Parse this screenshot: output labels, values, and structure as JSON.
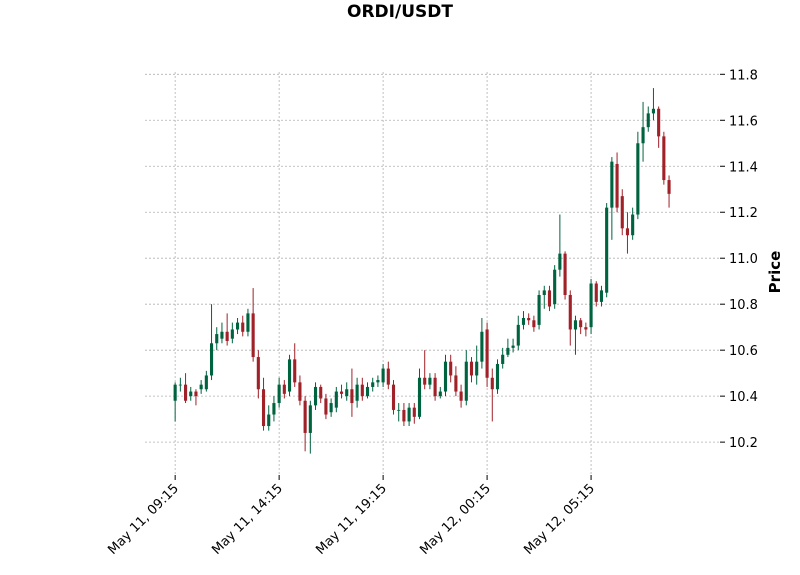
{
  "chart_data": {
    "type": "candlestick",
    "title": "ORDI/USDT",
    "ylabel": "Price",
    "up_color": "#006340",
    "down_color": "#a02128",
    "grid": true,
    "xlim": [
      -5.8,
      104.8
    ],
    "ylim": [
      10.057,
      11.81
    ],
    "xticks": [
      {
        "value": 0,
        "label": "May 11, 09:15"
      },
      {
        "value": 20,
        "label": "May 11, 14:15"
      },
      {
        "value": 40,
        "label": "May 11, 19:15"
      },
      {
        "value": 60,
        "label": "May 12, 00:15"
      },
      {
        "value": 80,
        "label": "May 12, 05:15"
      }
    ],
    "yticks": [
      10.2,
      10.4,
      10.6,
      10.8,
      11.0,
      11.2,
      11.4,
      11.6,
      11.8
    ],
    "ytick_labels": [
      "10.2",
      "10.4",
      "10.6",
      "10.8",
      "11.0",
      "11.2",
      "11.4",
      "11.6",
      "11.8"
    ],
    "open": [
      10.38,
      10.45,
      10.45,
      10.4,
      10.42,
      10.43,
      10.43,
      10.49,
      10.63,
      10.65,
      10.68,
      10.65,
      10.69,
      10.72,
      10.68,
      10.76,
      10.57,
      10.43,
      10.27,
      10.32,
      10.37,
      10.45,
      10.42,
      10.56,
      10.46,
      10.38,
      10.24,
      10.36,
      10.44,
      10.39,
      10.33,
      10.35,
      10.42,
      10.4,
      10.43,
      10.38,
      10.45,
      10.4,
      10.44,
      10.46,
      10.46,
      10.52,
      10.45,
      10.34,
      10.34,
      10.29,
      10.35,
      10.31,
      10.48,
      10.45,
      10.48,
      10.4,
      10.42,
      10.55,
      10.49,
      10.42,
      10.38,
      10.55,
      10.49,
      10.55,
      10.69,
      10.48,
      10.43,
      10.54,
      10.58,
      10.61,
      10.62,
      10.71,
      10.74,
      10.73,
      10.71,
      10.84,
      10.86,
      10.8,
      10.95,
      11.02,
      10.84,
      10.69,
      10.73,
      10.7,
      10.7,
      10.89,
      10.81,
      10.85,
      11.22,
      11.41,
      11.27,
      11.13,
      11.1,
      11.19,
      11.5,
      11.57,
      11.63,
      11.65,
      11.53,
      11.34
    ],
    "high": [
      10.46,
      10.48,
      10.5,
      10.44,
      10.43,
      10.47,
      10.51,
      10.8,
      10.7,
      10.72,
      10.76,
      10.72,
      10.74,
      10.75,
      10.78,
      10.87,
      10.6,
      10.48,
      10.36,
      10.4,
      10.48,
      10.47,
      10.58,
      10.63,
      10.49,
      10.4,
      10.38,
      10.46,
      10.45,
      10.41,
      10.39,
      10.44,
      10.45,
      10.46,
      10.52,
      10.48,
      10.48,
      10.46,
      10.48,
      10.49,
      10.54,
      10.55,
      10.47,
      10.37,
      10.37,
      10.37,
      10.37,
      10.52,
      10.6,
      10.5,
      10.5,
      10.44,
      10.58,
      10.58,
      10.53,
      10.45,
      10.6,
      10.57,
      10.62,
      10.74,
      10.72,
      10.52,
      10.56,
      10.61,
      10.65,
      10.65,
      10.75,
      10.77,
      10.76,
      10.75,
      10.86,
      10.88,
      10.88,
      10.97,
      11.19,
      11.03,
      10.86,
      10.75,
      10.74,
      10.72,
      10.91,
      10.9,
      10.88,
      11.24,
      11.44,
      11.46,
      11.3,
      11.2,
      11.22,
      11.55,
      11.68,
      11.66,
      11.74,
      11.66,
      11.55,
      11.36
    ],
    "low": [
      10.29,
      10.42,
      10.37,
      10.38,
      10.36,
      10.41,
      10.42,
      10.47,
      10.6,
      10.63,
      10.62,
      10.63,
      10.67,
      10.66,
      10.66,
      10.55,
      10.39,
      10.25,
      10.25,
      10.29,
      10.35,
      10.39,
      10.4,
      10.44,
      10.36,
      10.16,
      10.15,
      10.34,
      10.37,
      10.3,
      10.31,
      10.33,
      10.39,
      10.38,
      10.31,
      10.35,
      10.38,
      10.39,
      10.42,
      10.44,
      10.44,
      10.43,
      10.32,
      10.29,
      10.27,
      10.27,
      10.28,
      10.3,
      10.43,
      10.43,
      10.38,
      10.39,
      10.4,
      10.46,
      10.4,
      10.35,
      10.36,
      10.46,
      10.45,
      10.52,
      10.44,
      10.29,
      10.41,
      10.52,
      10.57,
      10.59,
      10.6,
      10.69,
      10.71,
      10.68,
      10.69,
      10.78,
      10.77,
      10.78,
      10.92,
      10.82,
      10.62,
      10.58,
      10.67,
      10.66,
      10.67,
      10.79,
      10.79,
      10.83,
      11.08,
      11.2,
      11.1,
      11.02,
      11.08,
      11.17,
      11.42,
      11.55,
      11.6,
      11.48,
      11.32,
      11.22
    ],
    "close": [
      10.45,
      10.45,
      10.38,
      10.42,
      10.4,
      10.45,
      10.49,
      10.63,
      10.67,
      10.68,
      10.64,
      10.69,
      10.72,
      10.68,
      10.76,
      10.57,
      10.43,
      10.27,
      10.32,
      10.37,
      10.45,
      10.41,
      10.56,
      10.46,
      10.38,
      10.24,
      10.36,
      10.44,
      10.39,
      10.32,
      10.37,
      10.42,
      10.41,
      10.43,
      10.37,
      10.45,
      10.4,
      10.44,
      10.46,
      10.47,
      10.52,
      10.45,
      10.34,
      10.34,
      10.29,
      10.35,
      10.31,
      10.48,
      10.45,
      10.48,
      10.4,
      10.42,
      10.55,
      10.49,
      10.42,
      10.38,
      10.55,
      10.49,
      10.55,
      10.68,
      10.48,
      10.43,
      10.54,
      10.58,
      10.61,
      10.62,
      10.71,
      10.74,
      10.73,
      10.7,
      10.84,
      10.86,
      10.79,
      10.95,
      11.02,
      10.84,
      10.69,
      10.73,
      10.7,
      10.69,
      10.89,
      10.81,
      10.86,
      11.22,
      11.42,
      11.22,
      11.13,
      11.1,
      11.19,
      11.5,
      11.57,
      11.63,
      11.65,
      11.53,
      11.34,
      11.28
    ]
  }
}
